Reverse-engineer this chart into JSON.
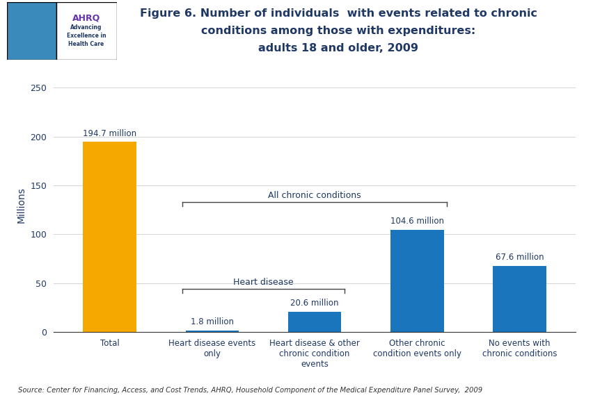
{
  "categories": [
    "Total",
    "Heart disease events\nonly",
    "Heart disease & other\nchronic condition\nevents",
    "Other chronic\ncondition events only",
    "No events with\nchronic conditions"
  ],
  "values": [
    194.7,
    1.8,
    20.6,
    104.6,
    67.6
  ],
  "labels": [
    "194.7 million",
    "1.8 million",
    "20.6 million",
    "104.6 million",
    "67.6 million"
  ],
  "bar_colors": [
    "#F5A800",
    "#1A75BC",
    "#1A75BC",
    "#1A75BC",
    "#1A75BC"
  ],
  "ylabel": "Millions",
  "ylim": [
    0,
    260
  ],
  "yticks": [
    0,
    50,
    100,
    150,
    200,
    250
  ],
  "title_line1": "Figure 6. Number of individuals  with events related to chronic",
  "title_line2": "conditions among those with expenditures:",
  "title_line3": "adults 18 and older, 2009",
  "title_color": "#1F3864",
  "bar_text_color": "#1F3864",
  "source_text": "Source: Center for Financing, Access, and Cost Trends, AHRQ, Household Component of the Medical Expenditure Panel Survey,  2009",
  "bracket_heart_label": "Heart disease",
  "bracket_chronic_label": "All chronic conditions",
  "background_color": "#FFFFFF",
  "plot_bg_color": "#FFFFFF",
  "header_line_color": "#0A0A8F",
  "axis_color": "#1F3864",
  "logo_bg_color": "#2277BB",
  "header_bg_color": "#FFFFFF",
  "border_color": "#0A0A8F"
}
